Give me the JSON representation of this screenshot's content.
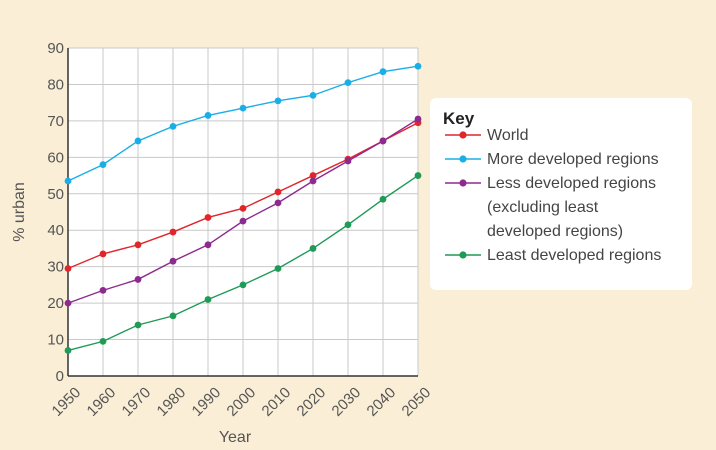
{
  "chart_data": {
    "type": "line",
    "xlabel": "Year",
    "ylabel": "% urban",
    "x": [
      1950,
      1960,
      1970,
      1980,
      1990,
      2000,
      2010,
      2020,
      2030,
      2040,
      2050
    ],
    "xlim": [
      1950,
      2050
    ],
    "ylim": [
      0,
      90
    ],
    "yticks": [
      0,
      10,
      20,
      30,
      40,
      50,
      60,
      70,
      80,
      90
    ],
    "grid": true,
    "legend_placement": "right",
    "legend_title": "Key",
    "series": [
      {
        "name": "World",
        "color": "#e0252b",
        "values": [
          29.5,
          33.5,
          36,
          39.5,
          43.5,
          46,
          50.5,
          55,
          59.5,
          64.5,
          69.5
        ]
      },
      {
        "name": "More developed regions",
        "color": "#1aaee6",
        "values": [
          53.5,
          58,
          64.5,
          68.5,
          71.5,
          73.5,
          75.5,
          77,
          80.5,
          83.5,
          85
        ]
      },
      {
        "name": "Less developed regions (excluding least developed regions)",
        "legend_lines": [
          "Less developed regions",
          "(excluding least",
          "developed regions)"
        ],
        "color": "#8d2a8f",
        "values": [
          20,
          23.5,
          26.5,
          31.5,
          36,
          42.5,
          47.5,
          53.5,
          59,
          64.5,
          70.5
        ]
      },
      {
        "name": "Least developed regions",
        "color": "#1f9a57",
        "values": [
          7,
          9.5,
          14,
          16.5,
          21,
          25,
          29.5,
          35,
          41.5,
          48.5,
          55
        ]
      }
    ]
  }
}
